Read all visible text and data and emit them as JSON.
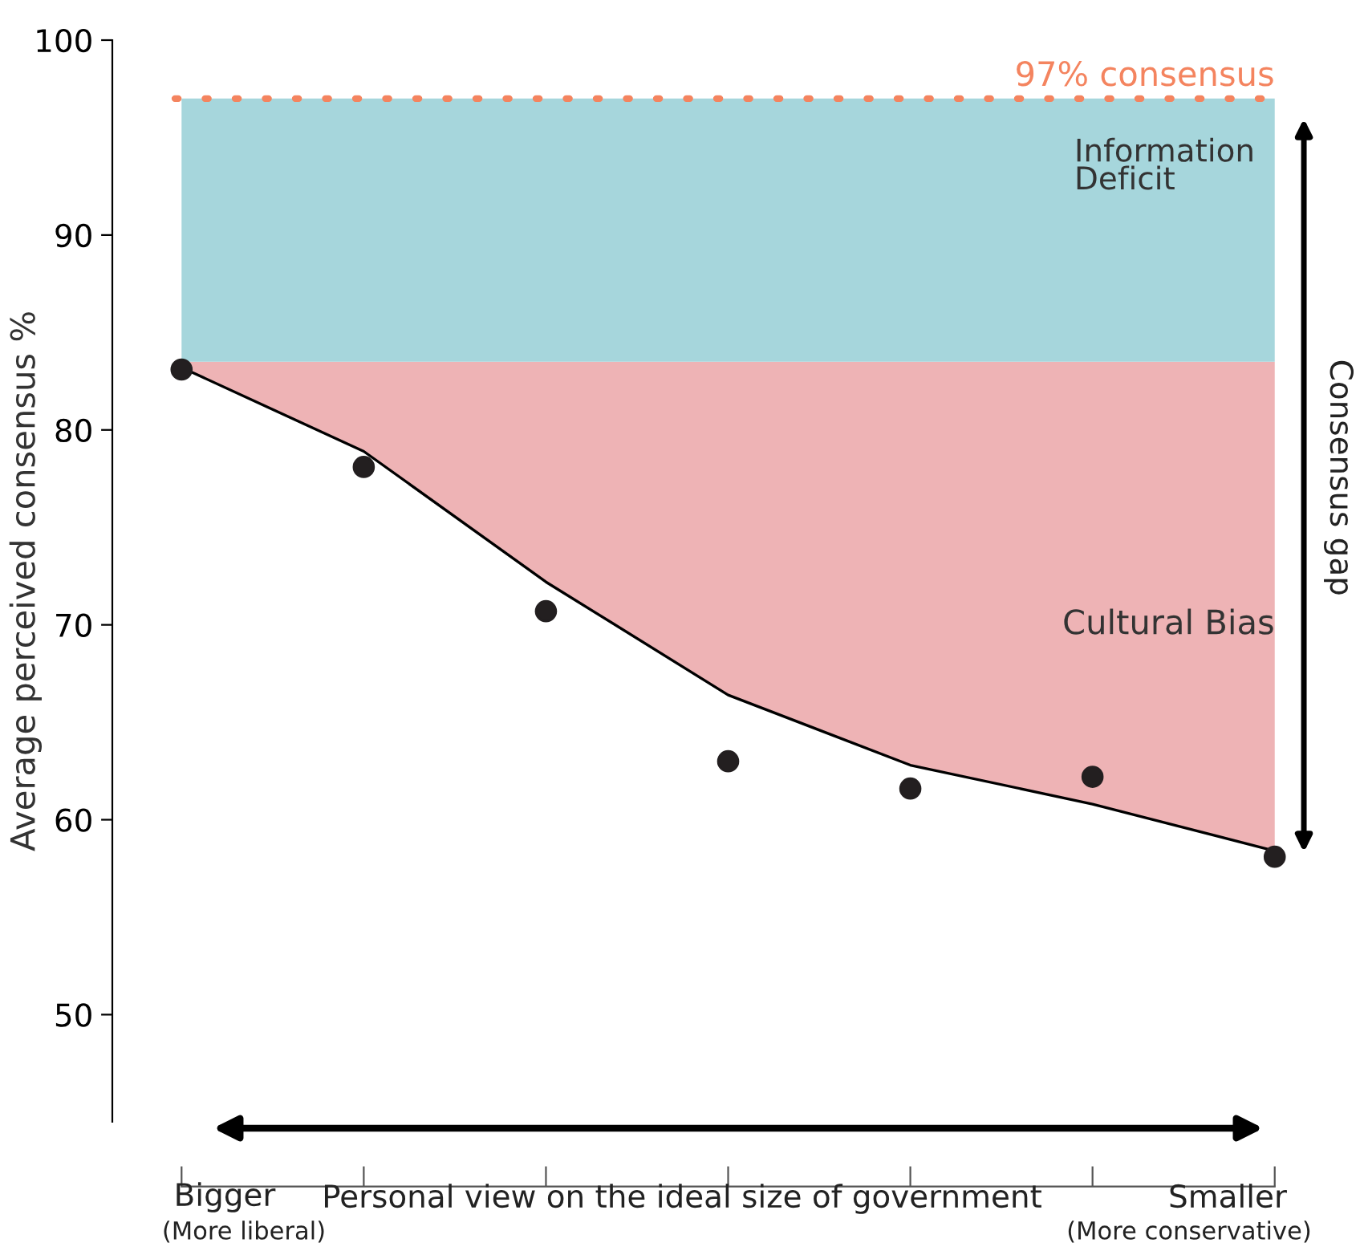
{
  "chart_data": {
    "type": "scatter",
    "ylabel": "Average perceived consensus %",
    "xlabel": "Personal view on the ideal size of government",
    "categories": [
      null,
      null,
      null,
      null,
      null,
      null,
      null
    ],
    "series": [
      {
        "type": "line",
        "color": "#000000",
        "values": [
          83.2,
          78.9,
          72.2,
          66.4,
          62.8,
          60.8,
          58.4
        ],
        "lower": [
          83.2,
          78.9,
          72.2,
          66.4,
          62.8,
          60.8,
          58.4
        ],
        "upper": [
          83.5,
          83.5,
          83.5,
          83.5,
          83.5,
          83.5,
          83.5
        ]
      },
      {
        "color": "#231f20",
        "marker": "circle",
        "values": [
          83.1,
          78.1,
          70.7,
          63.0,
          61.6,
          62.2,
          58.1
        ]
      }
    ],
    "ylim": [
      44.5,
      100
    ],
    "yticks": [
      50,
      60,
      70,
      80,
      90,
      100
    ],
    "tick_labels": "y",
    "grid": false,
    "line_style": "solid",
    "ref_lines": [
      {
        "axis": "y",
        "value": 97,
        "label": "97% consensus",
        "color": "#f4845f",
        "line_style": "dotted"
      }
    ],
    "bands": [
      {
        "axis": "y",
        "from": 83.5,
        "to": 97,
        "label": "Information\nDeficit",
        "color": "#a6d6dc"
      }
    ],
    "annotations": [
      "Cultural Bias",
      "Consensus gap",
      "Bigger",
      "(More liberal)",
      "Smaller",
      "(More conservative)"
    ]
  }
}
